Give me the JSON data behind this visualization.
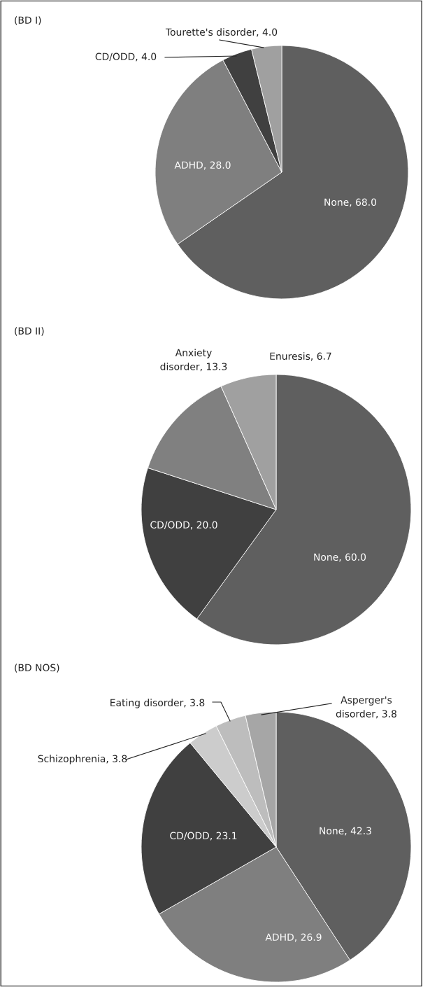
{
  "chart_data": [
    {
      "type": "pie",
      "title": "(BD I)",
      "categories": [
        "None",
        "ADHD",
        "CD/ODD",
        "Tourette's disorder"
      ],
      "values": [
        68.0,
        28.0,
        4.0,
        4.0
      ],
      "value_labels": [
        "68.0",
        "28.0",
        "4.0",
        "4.0"
      ],
      "colors": [
        "#5f5f5f",
        "#7f7f7f",
        "#404040",
        "#a0a0a0"
      ],
      "legend": false
    },
    {
      "type": "pie",
      "title": "(BD II)",
      "categories": [
        "None",
        "CD/ODD",
        "Anxiety disorder",
        "Enuresis"
      ],
      "values": [
        60.0,
        20.0,
        13.3,
        6.7
      ],
      "value_labels": [
        "60.0",
        "20.0",
        "13.3",
        "6.7"
      ],
      "colors": [
        "#5f5f5f",
        "#404040",
        "#808080",
        "#a0a0a0"
      ],
      "legend": false
    },
    {
      "type": "pie",
      "title": "(BD NOS)",
      "categories": [
        "None",
        "ADHD",
        "CD/ODD",
        "Schizophrenia",
        "Eating disorder",
        "Asperger's disorder"
      ],
      "values": [
        42.3,
        26.9,
        23.1,
        3.8,
        3.8,
        3.8
      ],
      "value_labels": [
        "42.3",
        "26.9",
        "23.1",
        "3.8",
        "3.8",
        "3.8"
      ],
      "colors": [
        "#5f5f5f",
        "#7f7f7f",
        "#404040",
        "#cccccc",
        "#bdbdbd",
        "#a6a6a6"
      ],
      "legend": false
    }
  ]
}
